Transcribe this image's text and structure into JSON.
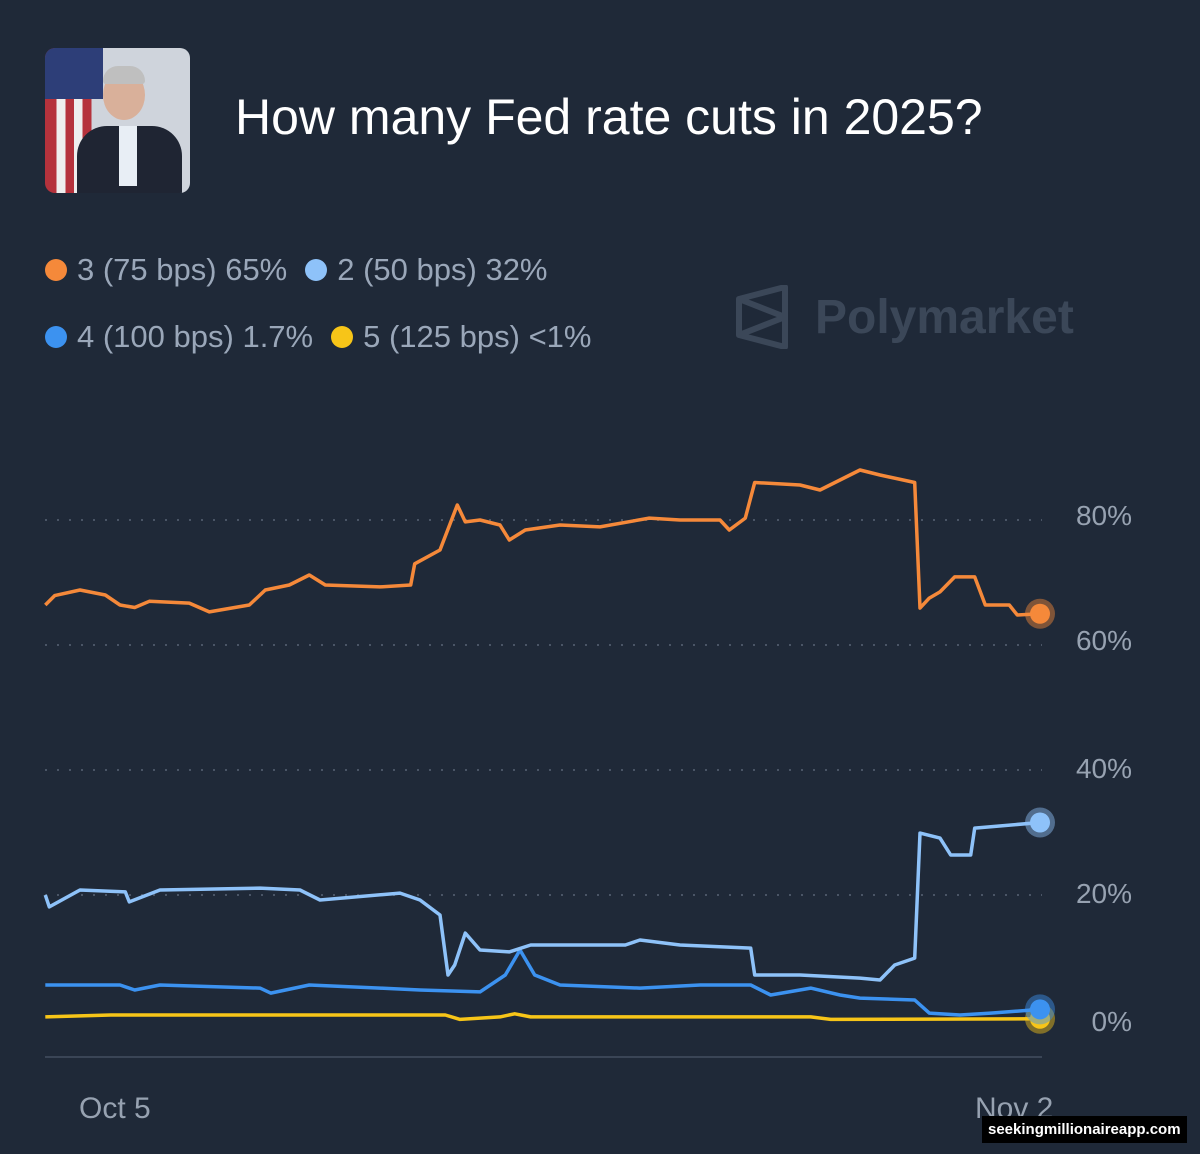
{
  "header": {
    "title": "How many Fed rate cuts in 2025?",
    "image": "fed-chair-photo"
  },
  "watermark": {
    "brand": "Polymarket",
    "icon": "polymarket-logo-icon"
  },
  "footer": {
    "text": "seekingmillionaireapp.com"
  },
  "chart_data": {
    "type": "line",
    "title": "How many Fed rate cuts in 2025?",
    "xlabel": "",
    "ylabel": "",
    "x_ticks": [
      "Oct 5",
      "Nov 2"
    ],
    "y_ticks": [
      "80%",
      "60%",
      "40%",
      "20%",
      "0%"
    ],
    "ylim": [
      0,
      90
    ],
    "y_unit": "%",
    "grid": "horizontal dotted",
    "legend_position": "top-left",
    "background": "#1f2938",
    "series": [
      {
        "name": "3 (75 bps)",
        "legend_value": "65%",
        "color": "#f5893a",
        "points": [
          [
            "2025-10-02T16:00",
            66.4
          ],
          [
            "2025-10-02T23:00",
            67.9
          ],
          [
            "2025-10-03T18:00",
            68.8
          ],
          [
            "2025-10-04T13:00",
            68
          ],
          [
            "2025-10-05T00:00",
            66.4
          ],
          [
            "2025-10-05T11:00",
            66
          ],
          [
            "2025-10-05T22:00",
            67
          ],
          [
            "2025-10-07T04:00",
            66.7
          ],
          [
            "2025-10-07T19:00",
            65.3
          ],
          [
            "2025-10-09T01:00",
            66.4
          ],
          [
            "2025-10-09T13:00",
            68.8
          ],
          [
            "2025-10-10T07:00",
            69.6
          ],
          [
            "2025-10-10T22:00",
            71.2
          ],
          [
            "2025-10-11T10:00",
            69.6
          ],
          [
            "2025-10-13T03:00",
            69.3
          ],
          [
            "2025-10-14T02:00",
            69.6
          ],
          [
            "2025-10-14T05:00",
            73
          ],
          [
            "2025-10-15T00:00",
            75.2
          ],
          [
            "2025-10-15T13:00",
            82.4
          ],
          [
            "2025-10-15T19:00",
            79.7
          ],
          [
            "2025-10-16T06:00",
            80
          ],
          [
            "2025-10-16T21:00",
            79.2
          ],
          [
            "2025-10-17T04:00",
            76.8
          ],
          [
            "2025-10-17T16:00",
            78.4
          ],
          [
            "2025-10-18T18:00",
            79.2
          ],
          [
            "2025-10-20T00:00",
            78.9
          ],
          [
            "2025-10-21T13:00",
            80.3
          ],
          [
            "2025-10-22T12:00",
            80
          ],
          [
            "2025-10-23T18:00",
            80
          ],
          [
            "2025-10-24T01:00",
            78.4
          ],
          [
            "2025-10-24T13:00",
            80.3
          ],
          [
            "2025-10-24T20:00",
            86
          ],
          [
            "2025-10-26T06:00",
            85.6
          ],
          [
            "2025-10-26T21:00",
            84.8
          ],
          [
            "2025-10-28T03:00",
            88
          ],
          [
            "2025-10-28T18:00",
            87.2
          ],
          [
            "2025-10-29T20:00",
            86
          ],
          [
            "2025-10-30T00:00",
            65.9
          ],
          [
            "2025-10-30T07:00",
            67.5
          ],
          [
            "2025-10-30T15:00",
            68.5
          ],
          [
            "2025-10-31T02:00",
            70.9
          ],
          [
            "2025-10-31T17:00",
            70.9
          ],
          [
            "2025-11-01T01:00",
            66.4
          ],
          [
            "2025-11-01T19:00",
            66.4
          ],
          [
            "2025-11-02T01:00",
            64.8
          ],
          [
            "2025-11-02T18:00",
            65
          ]
        ]
      },
      {
        "name": "2 (50 bps)",
        "legend_value": "32%",
        "color": "#8ec2f9",
        "points": [
          [
            "2025-10-02T16:00",
            20
          ],
          [
            "2025-10-02T19:00",
            18.1
          ],
          [
            "2025-10-03T18:00",
            20.8
          ],
          [
            "2025-10-05T04:00",
            20.5
          ],
          [
            "2025-10-05T07:00",
            18.9
          ],
          [
            "2025-10-06T06:00",
            20.8
          ],
          [
            "2025-10-09T09:00",
            21.1
          ],
          [
            "2025-10-10T15:00",
            20.8
          ],
          [
            "2025-10-11T06:00",
            19.2
          ],
          [
            "2025-10-13T18:00",
            20.3
          ],
          [
            "2025-10-14T09:00",
            19.2
          ],
          [
            "2025-10-15T00:00",
            16.8
          ],
          [
            "2025-10-15T06:00",
            7.2
          ],
          [
            "2025-10-15T11:00",
            8.8
          ],
          [
            "2025-10-15T19:00",
            13.9
          ],
          [
            "2025-10-16T06:00",
            11.2
          ],
          [
            "2025-10-17T04:00",
            10.9
          ],
          [
            "2025-10-17T20:00",
            12
          ],
          [
            "2025-10-20T19:00",
            12
          ],
          [
            "2025-10-21T06:00",
            12.8
          ],
          [
            "2025-10-22T12:00",
            12
          ],
          [
            "2025-10-24T17:00",
            11.5
          ],
          [
            "2025-10-24T20:00",
            7.2
          ],
          [
            "2025-10-26T06:00",
            7.2
          ],
          [
            "2025-10-28T03:00",
            6.7
          ],
          [
            "2025-10-28T18:00",
            6.4
          ],
          [
            "2025-10-29T05:00",
            8.8
          ],
          [
            "2025-10-29T20:00",
            9.9
          ],
          [
            "2025-10-30T00:00",
            29.9
          ],
          [
            "2025-10-30T15:00",
            29.1
          ],
          [
            "2025-10-30T23:00",
            26.4
          ],
          [
            "2025-10-31T14:00",
            26.4
          ],
          [
            "2025-10-31T17:00",
            30.7
          ],
          [
            "2025-11-02T18:00",
            31.6
          ]
        ]
      },
      {
        "name": "4 (100 bps)",
        "legend_value": "1.7%",
        "color": "#3c92f0",
        "points": [
          [
            "2025-10-02T16:00",
            5.6
          ],
          [
            "2025-10-05T00:00",
            5.6
          ],
          [
            "2025-10-05T11:00",
            4.8
          ],
          [
            "2025-10-06T06:00",
            5.6
          ],
          [
            "2025-10-09T09:00",
            5.1
          ],
          [
            "2025-10-09T17:00",
            4.3
          ],
          [
            "2025-10-10T22:00",
            5.6
          ],
          [
            "2025-10-13T03:00",
            5.1
          ],
          [
            "2025-10-14T09:00",
            4.8
          ],
          [
            "2025-10-16T06:00",
            4.5
          ],
          [
            "2025-10-17T01:00",
            7.2
          ],
          [
            "2025-10-17T12:00",
            11.2
          ],
          [
            "2025-10-17T23:00",
            7.2
          ],
          [
            "2025-10-18T18:00",
            5.6
          ],
          [
            "2025-10-21T06:00",
            5.1
          ],
          [
            "2025-10-23T03:00",
            5.6
          ],
          [
            "2025-10-24T17:00",
            5.6
          ],
          [
            "2025-10-25T08:00",
            4
          ],
          [
            "2025-10-26T14:00",
            5.1
          ],
          [
            "2025-10-27T12:00",
            4
          ],
          [
            "2025-10-28T03:00",
            3.5
          ],
          [
            "2025-10-29T20:00",
            3.2
          ],
          [
            "2025-10-30T07:00",
            1.1
          ],
          [
            "2025-10-31T06:00",
            0.8
          ],
          [
            "2025-11-01T05:00",
            1.1
          ],
          [
            "2025-11-02T18:00",
            1.7
          ]
        ]
      },
      {
        "name": "5 (125 bps)",
        "legend_value": "<1%",
        "color": "#f7c518",
        "points": [
          [
            "2025-10-02T16:00",
            0.5
          ],
          [
            "2025-10-04T17:00",
            0.8
          ],
          [
            "2025-10-15T04:00",
            0.8
          ],
          [
            "2025-10-15T15:00",
            0.1
          ],
          [
            "2025-10-16T21:00",
            0.5
          ],
          [
            "2025-10-17T08:00",
            1
          ],
          [
            "2025-10-17T20:00",
            0.5
          ],
          [
            "2025-10-26T14:00",
            0.5
          ],
          [
            "2025-10-27T05:00",
            0.1
          ],
          [
            "2025-11-02T18:00",
            0.2
          ]
        ]
      }
    ]
  }
}
